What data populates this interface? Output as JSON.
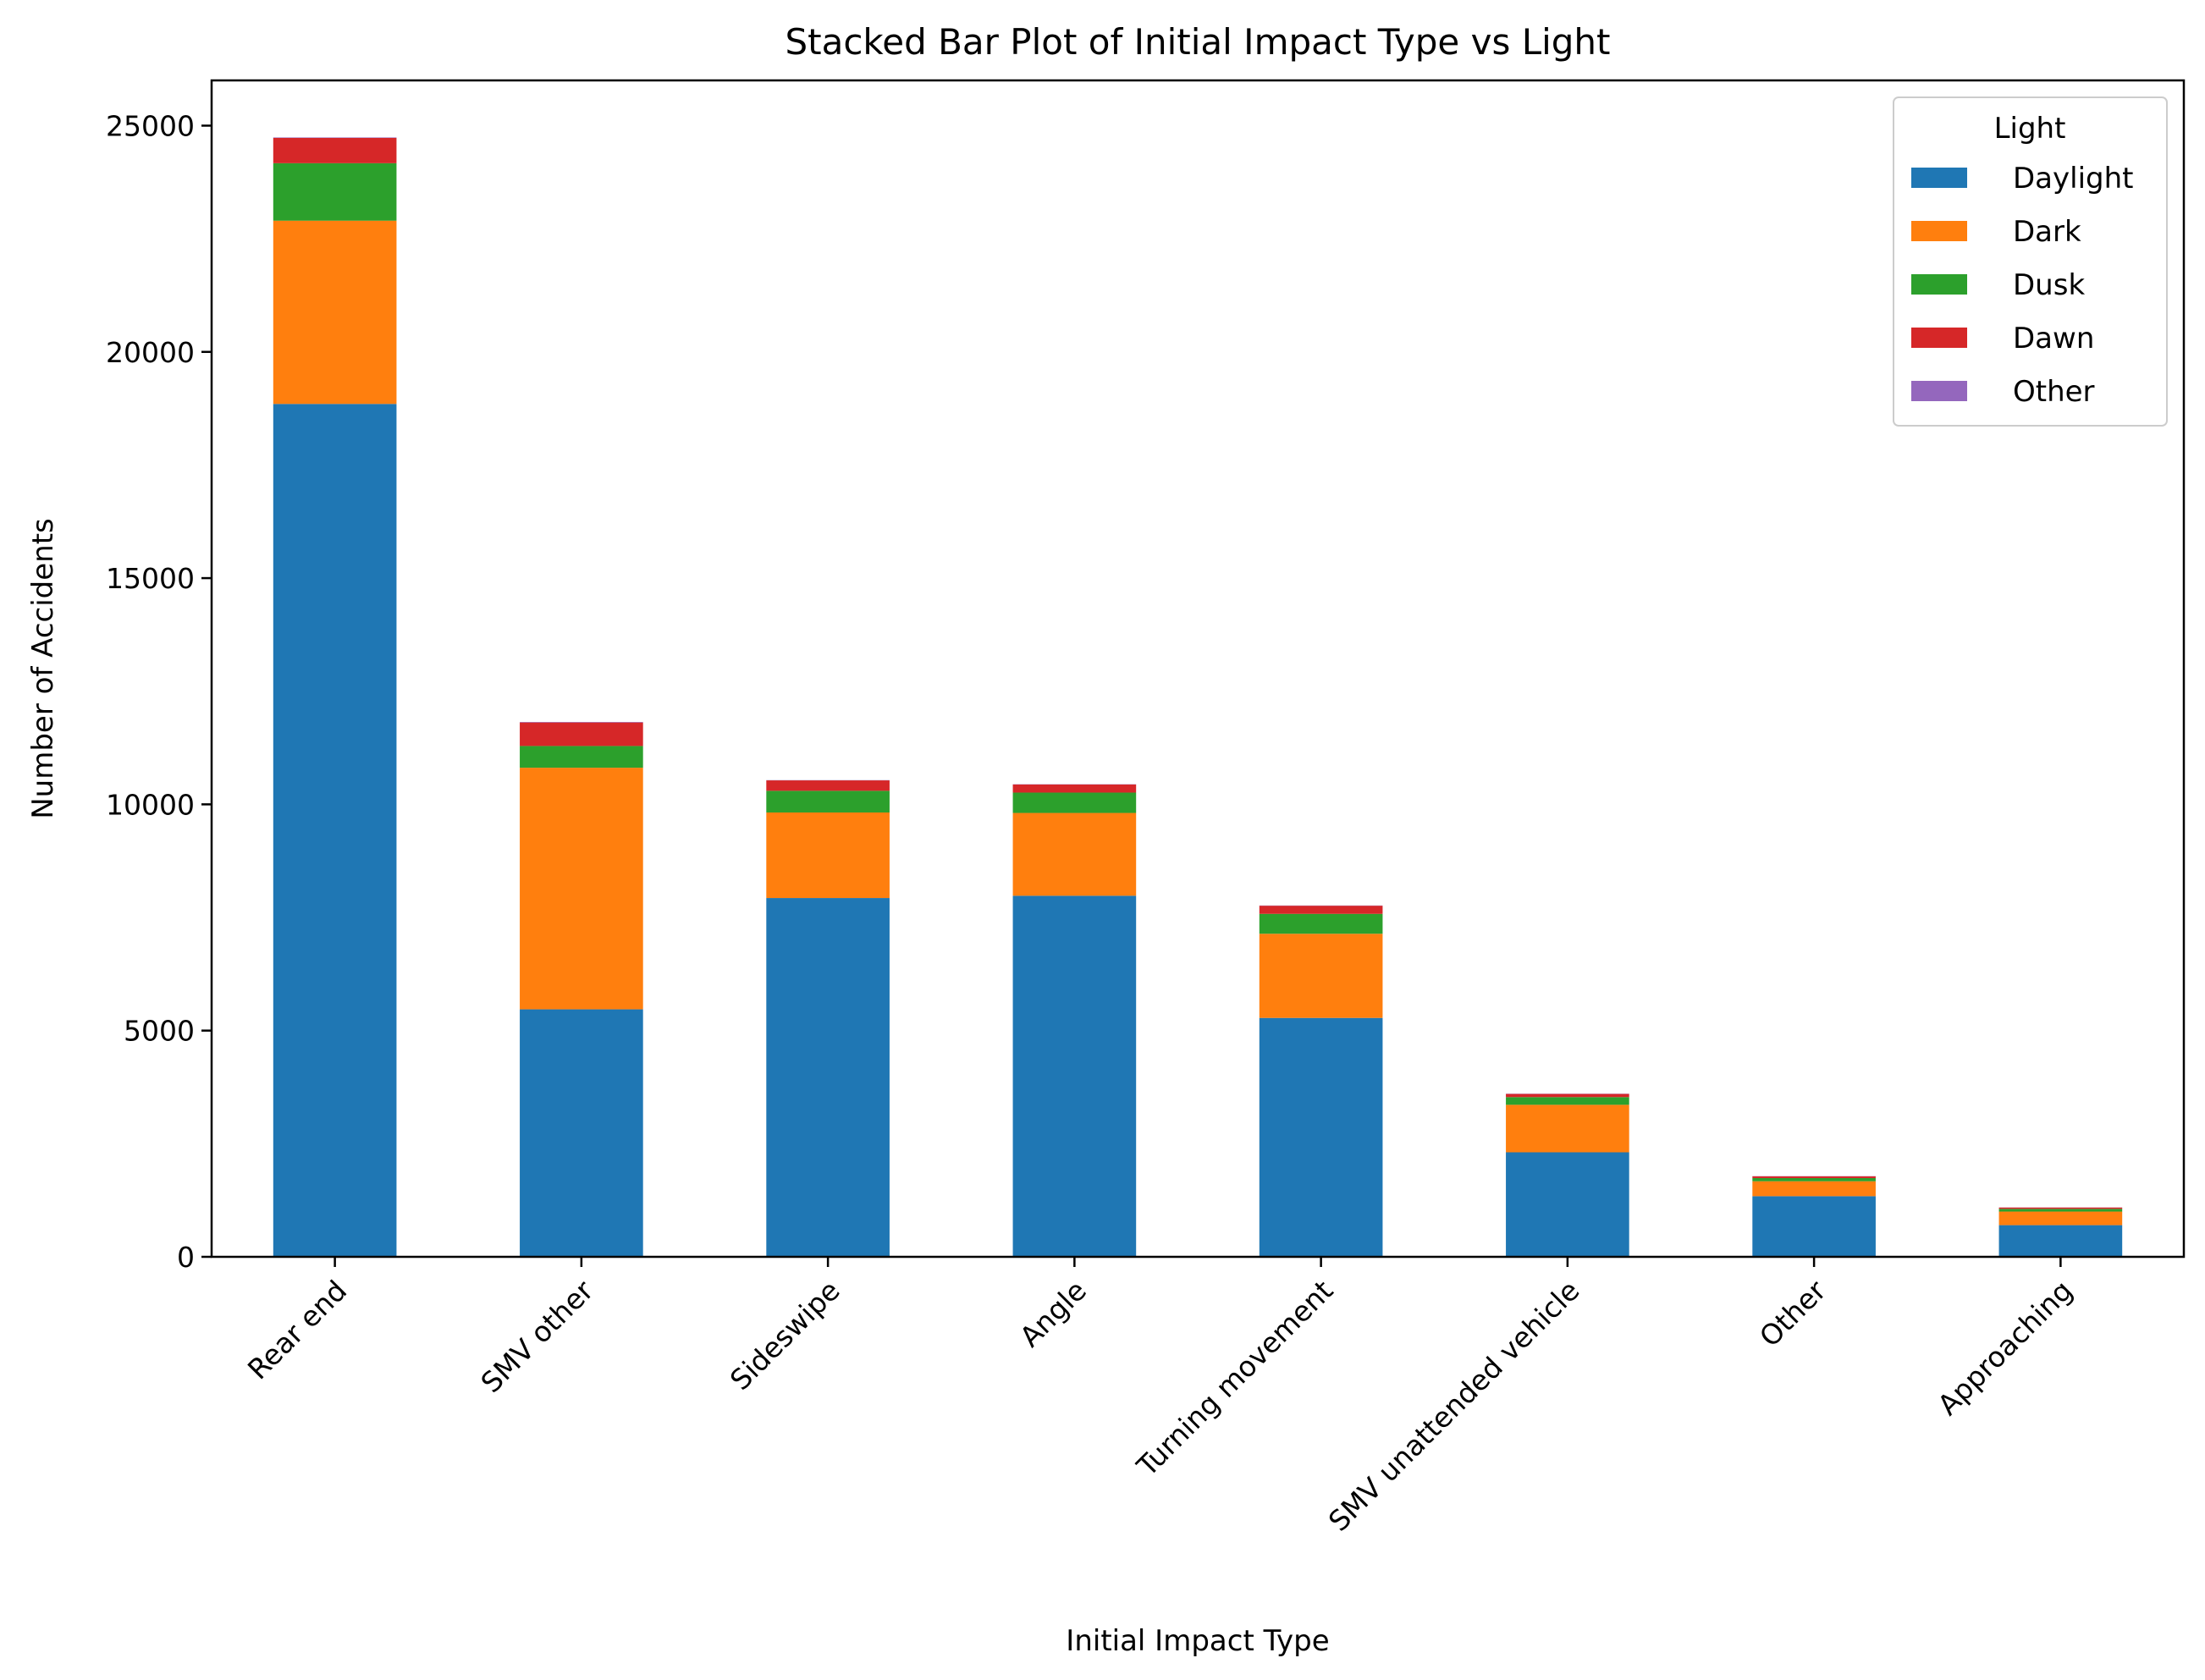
{
  "chart_data": {
    "type": "bar",
    "stacked": true,
    "title": "Stacked Bar Plot of Initial Impact Type vs Light",
    "xlabel": "Initial Impact Type",
    "ylabel": "Number of Accidents",
    "ylim": [
      0,
      26000
    ],
    "yticks": [
      0,
      5000,
      10000,
      15000,
      20000,
      25000
    ],
    "ytick_labels": [
      "0",
      "5000",
      "10000",
      "15000",
      "20000",
      "25000"
    ],
    "categories": [
      "Rear end",
      "SMV other",
      "Sideswipe",
      "Angle",
      "Turning movement",
      "SMV unattended vehicle",
      "Other",
      "Approaching"
    ],
    "legend": {
      "title": "Light",
      "position": "upper right"
    },
    "grid": false,
    "series": [
      {
        "name": "Daylight",
        "color": "#1f77b4",
        "values": [
          18850,
          5470,
          7930,
          7980,
          5280,
          2310,
          1340,
          700
        ]
      },
      {
        "name": "Dark",
        "color": "#ff7f0e",
        "values": [
          4050,
          5340,
          1890,
          1830,
          1860,
          1050,
          330,
          300
        ]
      },
      {
        "name": "Dusk",
        "color": "#2ca02c",
        "values": [
          1270,
          480,
          480,
          450,
          440,
          170,
          70,
          60
        ]
      },
      {
        "name": "Dawn",
        "color": "#d62728",
        "values": [
          560,
          520,
          230,
          180,
          180,
          70,
          40,
          30
        ]
      },
      {
        "name": "Other",
        "color": "#9467bd",
        "values": [
          10,
          10,
          5,
          5,
          5,
          5,
          3,
          2
        ]
      }
    ]
  }
}
